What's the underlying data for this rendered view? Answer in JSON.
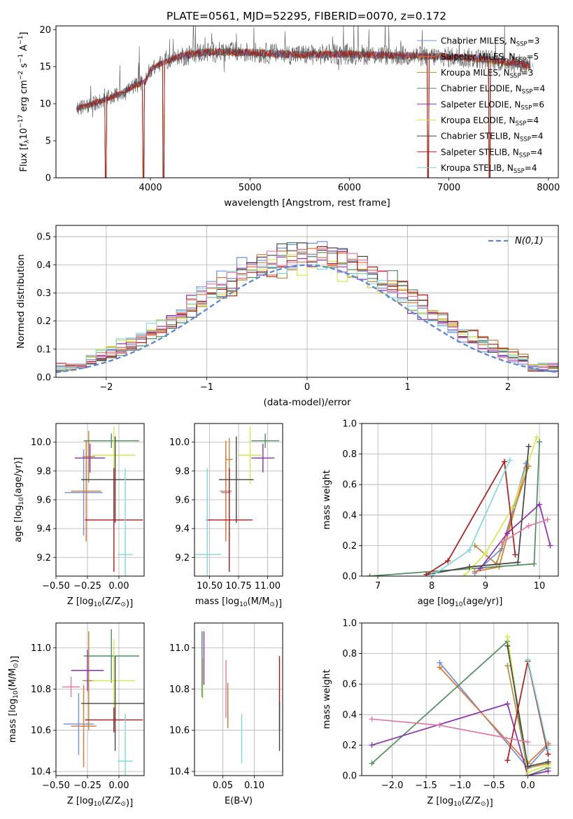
{
  "figure": {
    "title": "PLATE=0561, MJD=52295, FIBERID=0070, z=0.172"
  },
  "models": [
    {
      "name": "Chabrier MILES",
      "nssp": "3",
      "color": "#6e8fe8"
    },
    {
      "name": "Salpeter MILES",
      "nssp": "5",
      "color": "#e0762e"
    },
    {
      "name": "Kroupa MILES",
      "nssp": "3",
      "color": "#b8893a"
    },
    {
      "name": "Chabrier ELODIE",
      "nssp": "4",
      "color": "#4f8f5f"
    },
    {
      "name": "Salpeter ELODIE",
      "nssp": "6",
      "color": "#8e2fb0"
    },
    {
      "name": "Kroupa ELODIE",
      "nssp": "4",
      "color": "#d6e84a"
    },
    {
      "name": "Chabrier STELIB",
      "nssp": "4",
      "color": "#444444"
    },
    {
      "name": "Salpeter STELIB",
      "nssp": "4",
      "color": "#b01818"
    },
    {
      "name": "Kroupa STELIB",
      "nssp": "4",
      "color": "#7fd8e0"
    }
  ],
  "chart_data": [
    {
      "id": "spectrum",
      "type": "line",
      "xlabel": "wavelength [Angstrom, rest frame]",
      "ylabel": "Flux [f_λ 10^-17 erg cm^-2 s^-1 A^-1]",
      "xlim": [
        3050,
        8100
      ],
      "ylim": [
        0,
        20.5
      ],
      "xticks": [
        4000,
        5000,
        6000,
        7000,
        8000
      ],
      "yticks": [
        0,
        5,
        10,
        15,
        20
      ],
      "continuum": {
        "x": [
          3250,
          3400,
          3550,
          3700,
          3850,
          3950,
          4000,
          4100,
          4300,
          4500,
          4700,
          5000,
          5500,
          6000,
          6500,
          7000,
          7300,
          7600,
          7850
        ],
        "y": [
          9.3,
          9.9,
          10.6,
          11.4,
          12.5,
          13.0,
          14.6,
          15.4,
          16.4,
          16.9,
          17.0,
          16.9,
          16.6,
          16.7,
          16.5,
          16.3,
          16.1,
          15.6,
          15.1
        ]
      },
      "absorption_dips": [
        {
          "x": 3550,
          "depth": 1.0
        },
        {
          "x": 3930,
          "depth": 1.0
        },
        {
          "x": 4130,
          "depth": 1.0
        },
        {
          "x": 6790,
          "depth": 1.0
        },
        {
          "x": 7410,
          "depth": 1.0
        }
      ]
    },
    {
      "id": "residuals",
      "type": "line",
      "xlabel": "(data-model)/error",
      "ylabel": "Normed distribution",
      "xlim": [
        -2.5,
        2.5
      ],
      "ylim": [
        0,
        0.54
      ],
      "xticks": [
        -2,
        -1,
        0,
        1,
        2
      ],
      "yticks": [
        0.0,
        0.1,
        0.2,
        0.3,
        0.4,
        0.5
      ],
      "legend": "N(0,1)",
      "legend_color": "#5b87d6",
      "gaussian": {
        "mu": 0,
        "sigma": 1
      }
    },
    {
      "id": "age-vs-Z",
      "type": "scatter",
      "xlabel": "Z [log10(Z/Z⊙)]",
      "ylabel": "age  [log10(age/yr)]",
      "xlim": [
        -0.5,
        0.2
      ],
      "ylim": [
        9.07,
        10.13
      ],
      "xticks": [
        -0.5,
        -0.25,
        0.0
      ],
      "yticks": [
        9.2,
        9.4,
        9.6,
        9.8,
        10.0
      ],
      "points": [
        {
          "x": -0.28,
          "y": 9.65,
          "xerr": 0.15,
          "yerr": 0.3,
          "c": 0
        },
        {
          "x": -0.26,
          "y": 9.66,
          "xerr": 0.12,
          "yerr": 0.35,
          "c": 1
        },
        {
          "x": -0.24,
          "y": 9.9,
          "xerr": 0.05,
          "yerr": 0.18,
          "c": 2
        },
        {
          "x": -0.06,
          "y": 10.01,
          "xerr": 0.22,
          "yerr": 0.05,
          "c": 3
        },
        {
          "x": -0.23,
          "y": 9.89,
          "xerr": 0.12,
          "yerr": 0.1,
          "c": 4
        },
        {
          "x": -0.04,
          "y": 9.91,
          "xerr": 0.17,
          "yerr": 0.2,
          "c": 5
        },
        {
          "x": -0.03,
          "y": 9.74,
          "xerr": 0.27,
          "yerr": 0.3,
          "c": 6
        },
        {
          "x": -0.04,
          "y": 9.46,
          "xerr": 0.23,
          "yerr": 0.36,
          "c": 7
        },
        {
          "x": 0.05,
          "y": 9.22,
          "xerr": 0.06,
          "yerr": 0.6,
          "c": 8
        }
      ]
    },
    {
      "id": "age-vs-mass",
      "type": "scatter",
      "xlabel": "mass [log10(M/M⊙)]",
      "ylabel": "",
      "xlim": [
        10.37,
        11.13
      ],
      "ylim": [
        9.07,
        10.13
      ],
      "xticks": [
        10.5,
        10.75,
        11.0
      ],
      "yticks": [
        9.2,
        9.4,
        9.6,
        9.8,
        10.0
      ],
      "points": [
        {
          "x": 10.64,
          "y": 9.65,
          "xerr": 0.04,
          "yerr": 0.3,
          "c": 0
        },
        {
          "x": 10.64,
          "y": 9.66,
          "xerr": 0.05,
          "yerr": 0.35,
          "c": 1
        },
        {
          "x": 10.67,
          "y": 9.88,
          "xerr": 0.03,
          "yerr": 0.15,
          "c": 2
        },
        {
          "x": 10.98,
          "y": 10.01,
          "xerr": 0.12,
          "yerr": 0.05,
          "c": 3
        },
        {
          "x": 10.96,
          "y": 9.89,
          "xerr": 0.1,
          "yerr": 0.1,
          "c": 4
        },
        {
          "x": 10.85,
          "y": 9.91,
          "xerr": 0.1,
          "yerr": 0.2,
          "c": 5
        },
        {
          "x": 10.73,
          "y": 9.74,
          "xerr": 0.15,
          "yerr": 0.3,
          "c": 6
        },
        {
          "x": 10.67,
          "y": 9.46,
          "xerr": 0.2,
          "yerr": 0.36,
          "c": 7
        },
        {
          "x": 10.48,
          "y": 9.22,
          "xerr": 0.12,
          "yerr": 0.6,
          "c": 8
        }
      ]
    },
    {
      "id": "massweight-vs-age",
      "type": "line",
      "xlabel": "age  [log10(age/yr)]",
      "ylabel": "mass weight",
      "xlim": [
        6.7,
        10.35
      ],
      "ylim": [
        0,
        1
      ],
      "xticks": [
        7,
        8,
        9,
        10
      ],
      "yticks": [
        0.0,
        0.2,
        0.4,
        0.6,
        0.8,
        1.0
      ],
      "series": [
        {
          "c": 0,
          "x": [
            8.8,
            9.3,
            9.75
          ],
          "y": [
            0.02,
            0.18,
            0.74
          ]
        },
        {
          "c": 1,
          "x": [
            8.8,
            9.25,
            9.75
          ],
          "y": [
            0.03,
            0.06,
            0.71
          ]
        },
        {
          "c": 2,
          "x": [
            8.8,
            9.2,
            9.8
          ],
          "y": [
            0.2,
            0.08,
            0.72
          ]
        },
        {
          "c": 3,
          "x": [
            6.85,
            9.9,
            10.0
          ],
          "y": [
            0.0,
            0.08,
            0.88
          ]
        },
        {
          "c": 4,
          "x": [
            8.9,
            9.4,
            10.0,
            10.2
          ],
          "y": [
            0.05,
            0.28,
            0.47,
            0.2
          ]
        },
        {
          "c": 5,
          "x": [
            8.6,
            9.0,
            9.5,
            9.95
          ],
          "y": [
            0.0,
            0.15,
            0.45,
            0.91
          ]
        },
        {
          "c": 6,
          "x": [
            7.9,
            8.7,
            9.6,
            9.8
          ],
          "y": [
            0.01,
            0.06,
            0.09,
            0.85
          ]
        },
        {
          "c": 7,
          "x": [
            7.9,
            8.3,
            9.35,
            9.55
          ],
          "y": [
            0.01,
            0.1,
            0.75,
            0.14
          ]
        },
        {
          "c": 8,
          "x": [
            8.0,
            8.7,
            9.45
          ],
          "y": [
            0.0,
            0.17,
            0.76
          ]
        },
        {
          "c": "#e07aa8",
          "x": [
            9.3,
            9.8,
            10.15
          ],
          "y": [
            0.22,
            0.33,
            0.37
          ]
        }
      ]
    },
    {
      "id": "mass-vs-Z",
      "type": "scatter",
      "xlabel": "Z [log10(Z/Z⊙)]",
      "ylabel": "mass [log10(M/M⊙)]",
      "xlim": [
        -0.5,
        0.2
      ],
      "ylim": [
        10.38,
        11.12
      ],
      "xticks": [
        -0.5,
        -0.25,
        0.0
      ],
      "yticks": [
        10.4,
        10.6,
        10.8,
        11.0
      ],
      "points": [
        {
          "x": -0.32,
          "y": 10.63,
          "xerr": 0.12,
          "yerr": 0.15,
          "c": 0
        },
        {
          "x": -0.28,
          "y": 10.62,
          "xerr": 0.1,
          "yerr": 0.2,
          "c": 1
        },
        {
          "x": -0.24,
          "y": 10.84,
          "xerr": 0.05,
          "yerr": 0.24,
          "c": 2
        },
        {
          "x": -0.06,
          "y": 10.96,
          "xerr": 0.22,
          "yerr": 0.13,
          "c": 3
        },
        {
          "x": -0.25,
          "y": 10.89,
          "xerr": 0.13,
          "yerr": 0.1,
          "c": 4
        },
        {
          "x": -0.04,
          "y": 10.84,
          "xerr": 0.17,
          "yerr": 0.2,
          "c": 5
        },
        {
          "x": -0.03,
          "y": 10.73,
          "xerr": 0.27,
          "yerr": 0.23,
          "c": 6
        },
        {
          "x": -0.04,
          "y": 10.65,
          "xerr": 0.23,
          "yerr": 0.06,
          "c": 7
        },
        {
          "x": 0.05,
          "y": 10.45,
          "xerr": 0.06,
          "yerr": 0.23,
          "c": 8
        },
        {
          "x": -0.38,
          "y": 10.81,
          "xerr": 0.07,
          "yerr": 0.05,
          "c": "#e07aa8"
        }
      ]
    },
    {
      "id": "mass-vs-ebv",
      "type": "scatter",
      "xlabel": "E(B-V)",
      "ylabel": "",
      "xlim": [
        0.005,
        0.145
      ],
      "ylim": [
        10.38,
        11.12
      ],
      "xticks": [
        0.05,
        0.1
      ],
      "yticks": [
        10.4,
        10.6,
        10.8,
        11.0
      ],
      "points": [
        {
          "x": 0.017,
          "y": 10.93,
          "xerr": 0,
          "yerr": 0.14,
          "c": 0
        },
        {
          "x": 0.02,
          "y": 10.95,
          "xerr": 0,
          "yerr": 0.13,
          "c": 4
        },
        {
          "x": 0.018,
          "y": 10.85,
          "xerr": 0,
          "yerr": 0.1,
          "c": 5
        },
        {
          "x": 0.017,
          "y": 10.92,
          "xerr": 0,
          "yerr": 0.16,
          "c": 3
        },
        {
          "x": 0.055,
          "y": 10.8,
          "xerr": 0,
          "yerr": 0.14,
          "c": "#e07aa8"
        },
        {
          "x": 0.058,
          "y": 10.72,
          "xerr": 0,
          "yerr": 0.11,
          "c": 1
        },
        {
          "x": 0.08,
          "y": 10.56,
          "xerr": 0,
          "yerr": 0.12,
          "c": 8
        },
        {
          "x": 0.14,
          "y": 10.78,
          "xerr": 0,
          "yerr": 0.18,
          "c": 7
        },
        {
          "x": 0.14,
          "y": 10.62,
          "xerr": 0,
          "yerr": 0.12,
          "c": 6
        }
      ]
    },
    {
      "id": "massweight-vs-Z",
      "type": "line",
      "xlabel": "Z [log10(Z/Z⊙)]",
      "ylabel": "mass weight",
      "xlim": [
        -2.45,
        0.45
      ],
      "ylim": [
        0,
        1
      ],
      "xticks": [
        -2.0,
        -1.5,
        -1.0,
        -0.5,
        0.0
      ],
      "yticks": [
        0.0,
        0.2,
        0.4,
        0.6,
        0.8,
        1.0
      ],
      "series": [
        {
          "c": 0,
          "x": [
            -1.3,
            0.0,
            0.3
          ],
          "y": [
            0.74,
            0.05,
            0.2
          ]
        },
        {
          "c": 1,
          "x": [
            -1.3,
            0.0,
            0.3
          ],
          "y": [
            0.71,
            0.08,
            0.21
          ]
        },
        {
          "c": 2,
          "x": [
            -0.3,
            0.0,
            0.3
          ],
          "y": [
            0.72,
            0.05,
            0.08
          ]
        },
        {
          "c": 3,
          "x": [
            -2.3,
            -0.3,
            0.0,
            0.3
          ],
          "y": [
            0.08,
            0.88,
            0.0,
            0.05
          ]
        },
        {
          "c": 4,
          "x": [
            -2.3,
            -0.3,
            0.0,
            0.3
          ],
          "y": [
            0.2,
            0.47,
            0.0,
            0.03
          ]
        },
        {
          "c": 5,
          "x": [
            -0.3,
            0.0,
            0.3
          ],
          "y": [
            0.91,
            0.02,
            0.07
          ]
        },
        {
          "c": 6,
          "x": [
            -0.3,
            0.0,
            0.3
          ],
          "y": [
            0.85,
            0.06,
            0.09
          ]
        },
        {
          "c": 7,
          "x": [
            -0.3,
            0.0,
            0.3
          ],
          "y": [
            0.1,
            0.75,
            0.14
          ]
        },
        {
          "c": 8,
          "x": [
            0.0,
            0.3
          ],
          "y": [
            0.76,
            0.17
          ]
        },
        {
          "c": "#e07aa8",
          "x": [
            -2.3,
            -1.3,
            0.0
          ],
          "y": [
            0.37,
            0.33,
            0.22
          ]
        }
      ]
    }
  ]
}
